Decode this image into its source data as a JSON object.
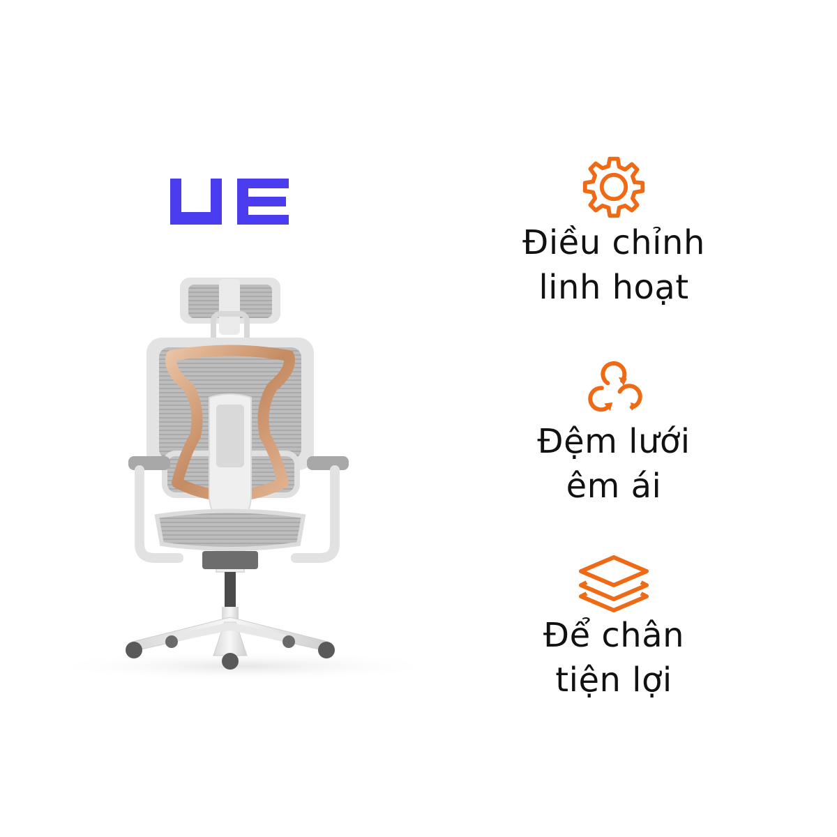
{
  "brand": {
    "logo_text": "UE",
    "color": "#4a3df0"
  },
  "accent_color": "#ef6a14",
  "features": [
    {
      "icon": "gear-icon",
      "line1": "Điều chỉnh",
      "line2": "linh hoạt"
    },
    {
      "icon": "refresh-cycle-icon",
      "line1": "Đệm lưới",
      "line2": "êm ái"
    },
    {
      "icon": "layers-icon",
      "line1": "Để chân",
      "line2": "tiện lợi"
    }
  ]
}
